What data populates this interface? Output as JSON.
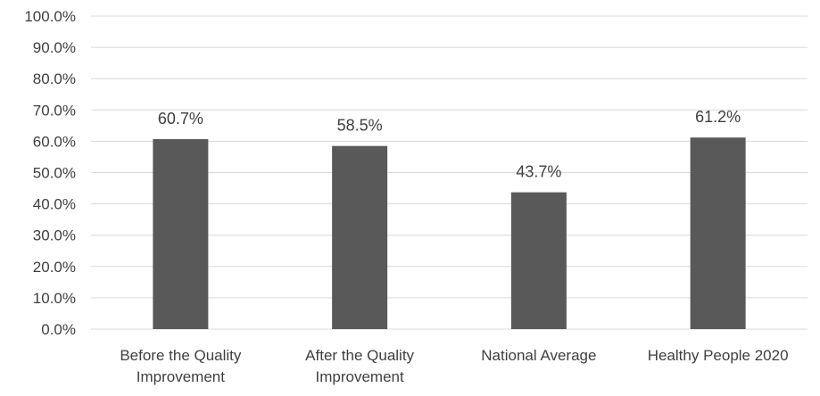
{
  "chart_data": {
    "type": "bar",
    "categories": [
      [
        "Before the Quality",
        "Improvement"
      ],
      [
        "After the Quality",
        "Improvement"
      ],
      [
        "National Average"
      ],
      [
        "Healthy People 2020"
      ]
    ],
    "values": [
      60.7,
      58.5,
      43.7,
      61.2
    ],
    "data_labels": [
      "60.7%",
      "58.5%",
      "43.7%",
      "61.2%"
    ],
    "ylim": [
      0,
      100
    ],
    "yticks": [
      0,
      10,
      20,
      30,
      40,
      50,
      60,
      70,
      80,
      90,
      100
    ],
    "ytick_labels": [
      "0.0%",
      "10.0%",
      "20.0%",
      "30.0%",
      "40.0%",
      "50.0%",
      "60.0%",
      "70.0%",
      "80.0%",
      "90.0%",
      "100.0%"
    ],
    "grid": true,
    "legend": false,
    "bar_color": "#595959",
    "grid_color": "#d9d9d9"
  }
}
